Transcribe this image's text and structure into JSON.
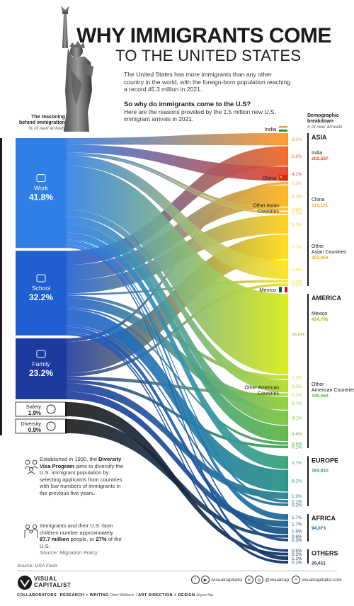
{
  "title": {
    "line1": "WHY IMMIGRANTS COME",
    "line2": "TO THE UNITED STATES"
  },
  "intro": "The United States has more immigrants than any other country in the world, with the foreign-born population reaching a record 45.3 million in 2021.",
  "question": "So why do immigrants come to the U.S?",
  "question_sub": "Here are the reasons provided by the 1.5 million new U.S. immigrant arrivals in 2021.",
  "left_header": {
    "title": "The reasoning behind immigration",
    "sub": "% of new arrivals"
  },
  "right_header": {
    "title": "Demographic breakdown",
    "sub": "# of new arrivals"
  },
  "chart_data": {
    "type": "sankey",
    "reasons": [
      {
        "label": "Work",
        "value": "41.8%",
        "share": 41.8,
        "icon": "briefcase-icon",
        "color": "#2f7fe6"
      },
      {
        "label": "School",
        "value": "32.2%",
        "share": 32.2,
        "icon": "school-icon",
        "color": "#1f5fcf"
      },
      {
        "label": "Family",
        "value": "23.2%",
        "share": 23.2,
        "icon": "family-icon",
        "color": "#1d3a9e"
      },
      {
        "label": "Safety",
        "value": "1.9%",
        "share": 1.9,
        "icon": "safety-icon",
        "color": "#1a1a1a"
      },
      {
        "label": "Diversity",
        "value": "0.9%",
        "share": 0.9,
        "icon": "globe-icon",
        "color": "#1a1a1a"
      }
    ],
    "origin_labels": [
      {
        "label": "India",
        "flag": "india-flag"
      },
      {
        "label": "China",
        "flag": "china-flag"
      },
      {
        "label": "Other Asian Countries"
      },
      {
        "label": "Mexico",
        "flag": "mexico-flag"
      },
      {
        "label": "Other American Countries"
      }
    ],
    "flows": [
      {
        "region": "asia",
        "pct": "3.5%",
        "value": 3.5,
        "color": "#ff9a2e"
      },
      {
        "region": "asia",
        "pct": "5.6%",
        "value": 5.6,
        "color": "#f06a28"
      },
      {
        "region": "asia",
        "pct": "4.1%",
        "value": 4.1,
        "color": "#e8472a"
      },
      {
        "region": "asia",
        "pct": "0.2%",
        "value": 0.2,
        "color": "#ffb23a"
      },
      {
        "region": "asia",
        "pct": "6.1%",
        "value": 6.1,
        "color": "#ffb51f"
      },
      {
        "region": "asia",
        "pct": "0.9%",
        "value": 0.9,
        "color": "#ffc12a"
      },
      {
        "region": "asia",
        "pct": "0.1%",
        "value": 0.1,
        "color": "#ffc83a"
      },
      {
        "region": "asia",
        "pct": "5.3%",
        "value": 5.3,
        "color": "#ffd21e"
      },
      {
        "region": "asia",
        "pct": "7.1%",
        "value": 7.1,
        "color": "#ffdc1a"
      },
      {
        "region": "asia",
        "pct": "5.4%",
        "value": 5.4,
        "color": "#ffe424"
      },
      {
        "region": "asia",
        "pct": "0.5%",
        "value": 0.5,
        "color": "#f5e630"
      },
      {
        "region": "asia",
        "pct": "0.2%",
        "value": 0.2,
        "color": "#eee536"
      },
      {
        "region": "america",
        "pct": "23.0%",
        "value": 23.0,
        "color": "#d6ea1c"
      },
      {
        "region": "america",
        "pct": "1.2%",
        "value": 1.2,
        "color": "#c6e52a"
      },
      {
        "region": "america",
        "pct": "3.5%",
        "value": 3.5,
        "color": "#b4de2e"
      },
      {
        "region": "america",
        "pct": "0.1%",
        "value": 0.1,
        "color": "#a8d83a"
      },
      {
        "region": "america",
        "pct": "3.7%",
        "value": 3.7,
        "color": "#8fd03c"
      },
      {
        "region": "america",
        "pct": "4.1%",
        "value": 4.1,
        "color": "#7cc640"
      },
      {
        "region": "america",
        "pct": "4.4%",
        "value": 4.4,
        "color": "#5fb946"
      },
      {
        "region": "america",
        "pct": "0.5%",
        "value": 0.5,
        "color": "#4faf4e"
      },
      {
        "region": "america",
        "pct": "0.1%",
        "value": 0.1,
        "color": "#44a854"
      },
      {
        "region": "europe",
        "pct": "3.7%",
        "value": 3.7,
        "color": "#3aa37e"
      },
      {
        "region": "europe",
        "pct": "6.2%",
        "value": 6.2,
        "color": "#2b9488"
      },
      {
        "region": "europe",
        "pct": "1.9%",
        "value": 1.9,
        "color": "#2a8790"
      },
      {
        "region": "europe",
        "pct": "0.1%",
        "value": 0.1,
        "color": "#2a7d92"
      },
      {
        "region": "europe",
        "pct": "0.2%",
        "value": 0.2,
        "color": "#2a7494"
      },
      {
        "region": "africa",
        "pct": "1.7%",
        "value": 1.7,
        "color": "#226c96"
      },
      {
        "region": "africa",
        "pct": "1.7%",
        "value": 1.7,
        "color": "#1f6190"
      },
      {
        "region": "africa",
        "pct": "1.9%",
        "value": 1.9,
        "color": "#1d5688"
      },
      {
        "region": "africa",
        "pct": "0.6%",
        "value": 0.6,
        "color": "#1c4e82"
      },
      {
        "region": "africa",
        "pct": "0.3%",
        "value": 0.3,
        "color": "#1b487c"
      },
      {
        "region": "others",
        "pct": "0.5%",
        "value": 0.5,
        "color": "#173d6e"
      },
      {
        "region": "others",
        "pct": "0.2%",
        "value": 0.2,
        "color": "#163a68"
      },
      {
        "region": "others",
        "pct": "1.1%",
        "value": 1.1,
        "color": "#143562"
      },
      {
        "region": "others",
        "pct": "0.1%",
        "value": 0.1,
        "color": "#13325c"
      }
    ],
    "regions": [
      {
        "key": "asia",
        "name": "ASIA",
        "items": [
          {
            "label": "India",
            "count": "202,567",
            "color": "#e8472a"
          },
          {
            "label": "China",
            "count": "114,121",
            "color": "#f5a623"
          },
          {
            "label": "Other Asian Countries",
            "count": "263,054",
            "color": "#e0b400"
          }
        ]
      },
      {
        "key": "america",
        "name": "AMERICA",
        "items": [
          {
            "label": "Mexico",
            "count": "424,791",
            "color": "#a6b700"
          },
          {
            "label": "Other American Countries",
            "count": "195,564",
            "color": "#5cae4a"
          }
        ]
      },
      {
        "key": "europe",
        "name": "EUROPE",
        "items": [
          {
            "label": "",
            "count": "184,810",
            "color": "#2b9488"
          }
        ]
      },
      {
        "key": "africa",
        "name": "AFRICA",
        "items": [
          {
            "label": "",
            "count": "94,073",
            "color": "#1f6190"
          }
        ]
      },
      {
        "key": "others",
        "name": "OTHERS",
        "items": [
          {
            "label": "",
            "count": "29,611",
            "color": "#13325c"
          }
        ]
      }
    ]
  },
  "notes": {
    "diversity": {
      "pre": "Established in 1990, the ",
      "bold": "Diversity Visa Program",
      "post": " aims to diversify the U.S. immigrant population by selecting applicants from countries with low numbers of immigrants in the previous five years."
    },
    "children": {
      "pre": "Immigrants and their U.S.-born children number approximately ",
      "bold1": "87.7 million",
      "mid": " people, or ",
      "bold2": "27%",
      "post": " of the U.S.",
      "source": "Source: Migration Policy"
    }
  },
  "source": "Source: USA Facts",
  "brand": {
    "line1": "VISUAL",
    "line2": "CAPITALIST"
  },
  "social": {
    "fb_yt": "/visualcapitalist",
    "x_ig": "@visualcap",
    "web": "visualcapitalist.com"
  },
  "credits": {
    "collaborators": "COLLABORATORS",
    "research_label": "RESEARCH + WRITING",
    "research": "Omri Wallach",
    "art_label": "ART DIRECTION + DESIGN",
    "art": "Joyce Ma"
  }
}
